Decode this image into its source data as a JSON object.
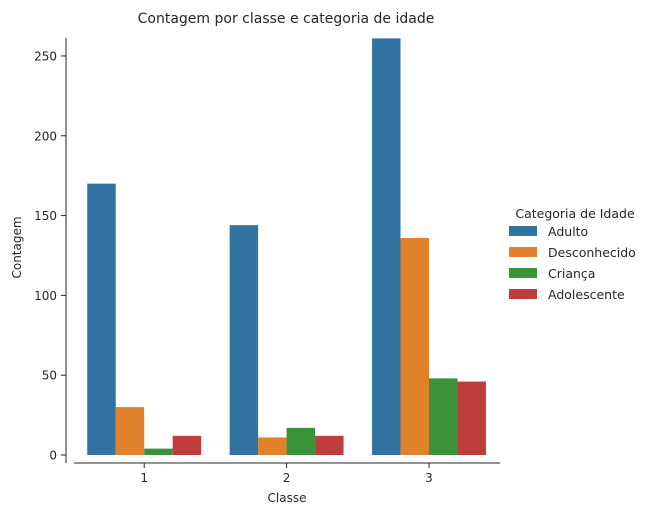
{
  "chart_data": {
    "type": "bar",
    "title": "Contagem por classe e categoria de idade",
    "xlabel": "Classe",
    "ylabel": "Contagem",
    "categories": [
      "1",
      "2",
      "3"
    ],
    "ylim": [
      0,
      260
    ],
    "yticks": [
      0,
      50,
      100,
      150,
      200,
      250
    ],
    "legend": {
      "title": "Categoria de Idade",
      "placement": "right"
    },
    "grid": false,
    "series": [
      {
        "name": "Adulto",
        "color": "#3274a1",
        "values": [
          170,
          144,
          261
        ]
      },
      {
        "name": "Desconhecido",
        "color": "#e1812c",
        "values": [
          30,
          11,
          136
        ]
      },
      {
        "name": "Criança",
        "color": "#3a923a",
        "values": [
          4,
          17,
          48
        ]
      },
      {
        "name": "Adolescente",
        "color": "#c03d3e",
        "values": [
          12,
          12,
          46
        ]
      }
    ]
  }
}
